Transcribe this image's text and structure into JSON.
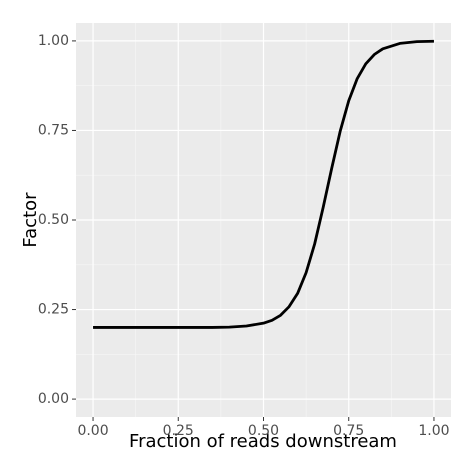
{
  "chart_data": {
    "type": "line",
    "x_label": "Fraction of reads downstream",
    "y_label": "Factor",
    "x": [
      0,
      0.05,
      0.1,
      0.15,
      0.2,
      0.25,
      0.3,
      0.35,
      0.4,
      0.45,
      0.5,
      0.525,
      0.55,
      0.575,
      0.6,
      0.625,
      0.65,
      0.675,
      0.7,
      0.725,
      0.75,
      0.775,
      0.8,
      0.825,
      0.85,
      0.9,
      0.95,
      1.0
    ],
    "series": [
      {
        "color": "#000000",
        "values": [
          0.2,
          0.2,
          0.2,
          0.2,
          0.2,
          0.2,
          0.2,
          0.2,
          0.201,
          0.204,
          0.212,
          0.22,
          0.234,
          0.258,
          0.295,
          0.353,
          0.433,
          0.535,
          0.644,
          0.748,
          0.833,
          0.895,
          0.936,
          0.962,
          0.978,
          0.993,
          0.998,
          0.999
        ]
      }
    ],
    "xlim": [
      -0.05,
      1.05
    ],
    "ylim": [
      -0.05,
      1.05
    ],
    "xticks": [
      {
        "value": 0,
        "label": "0.00"
      },
      {
        "value": 0.25,
        "label": "0.25"
      },
      {
        "value": 0.5,
        "label": "0.50"
      },
      {
        "value": 0.75,
        "label": "0.75"
      },
      {
        "value": 1,
        "label": "1.00"
      }
    ],
    "yticks": [
      {
        "value": 0,
        "label": "0.00"
      },
      {
        "value": 0.25,
        "label": "0.25"
      },
      {
        "value": 0.5,
        "label": "0.50"
      },
      {
        "value": 0.75,
        "label": "0.75"
      },
      {
        "value": 1,
        "label": "1.00"
      }
    ],
    "grid": true
  }
}
